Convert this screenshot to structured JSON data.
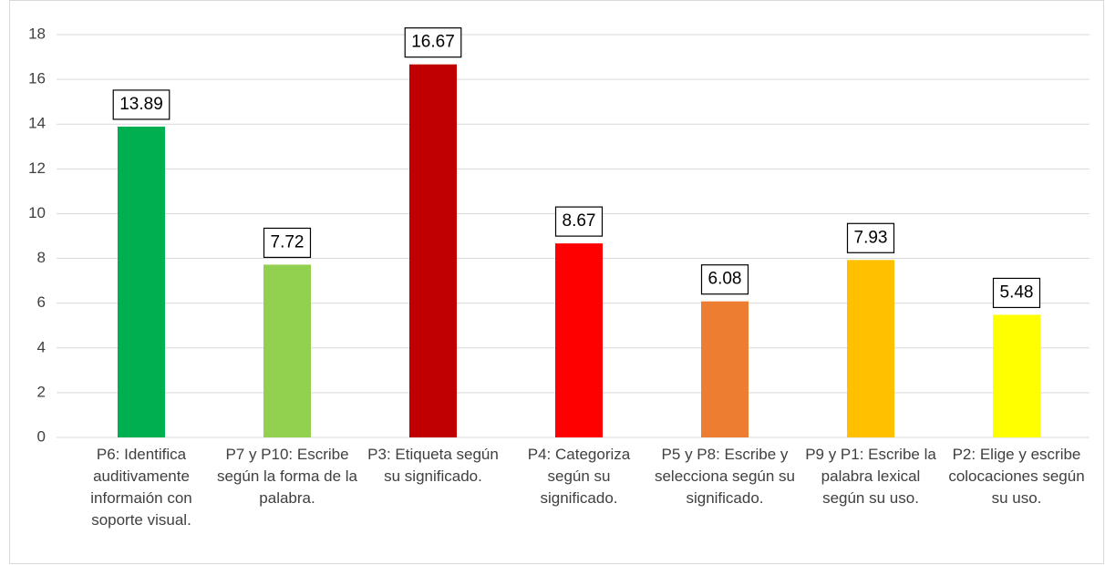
{
  "chart_data": {
    "type": "bar",
    "categories": [
      "P6: Identifica auditivamente informaión con soporte visual.",
      "P7 y P10: Escribe según la forma de la palabra.",
      "P3: Etiqueta según su significado.",
      "P4: Categoriza según su significado.",
      "P5 y P8: Escribe y selecciona según su significado.",
      "P9 y P1: Escribe la palabra lexical según su uso.",
      "P2: Elige y escribe colocaciones según su uso."
    ],
    "values": [
      13.89,
      7.72,
      16.67,
      8.67,
      6.08,
      7.93,
      5.48
    ],
    "colors": [
      "#00b050",
      "#92d050",
      "#c00000",
      "#ff0000",
      "#ed7d31",
      "#ffc000",
      "#ffff00"
    ],
    "ylim": [
      0,
      18
    ],
    "yticks": [
      0,
      2,
      4,
      6,
      8,
      10,
      12,
      14,
      16,
      18
    ],
    "grid": true
  }
}
